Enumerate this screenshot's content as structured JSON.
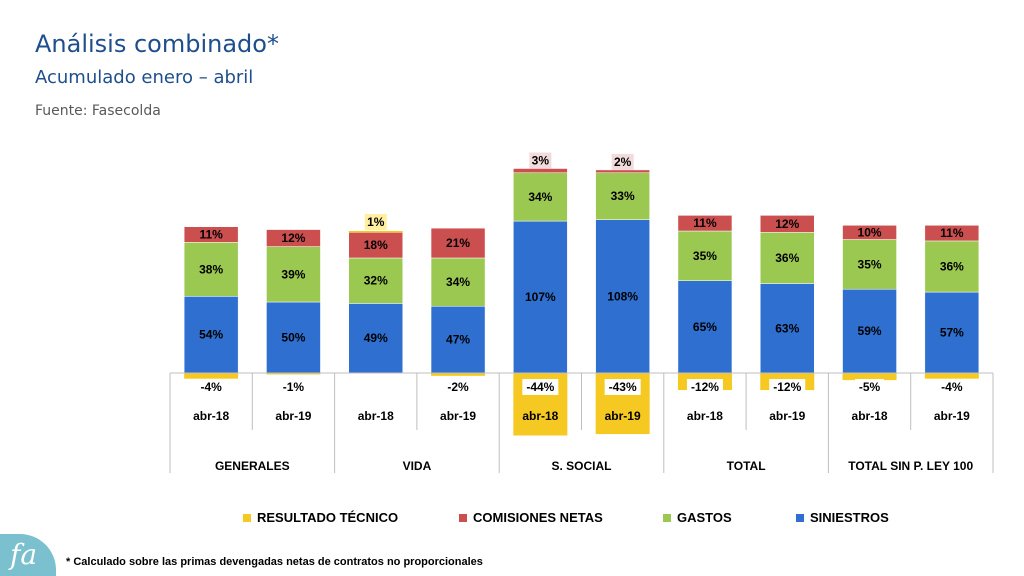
{
  "header": {
    "title": "Análisis combinado*",
    "subtitle": "Acumulado enero – abril",
    "source": "Fuente: Fasecolda"
  },
  "footnote": "* Calculado sobre las primas devengadas netas de contratos no proporcionales",
  "logo": {
    "icon": "fasecolda-logo-icon",
    "text": "fa"
  },
  "colors": {
    "siniestros": "#2e6fcf",
    "gastos": "#9bc851",
    "comisiones": "#cc4f4f",
    "resultado": "#f5c922"
  },
  "chart_data": {
    "type": "bar",
    "stacked": true,
    "categories": [
      "abr-18",
      "abr-19",
      "abr-18",
      "abr-19",
      "abr-18",
      "abr-19",
      "abr-18",
      "abr-19",
      "abr-18",
      "abr-19"
    ],
    "groups": [
      "GENERALES",
      "VIDA",
      "S. SOCIAL",
      "TOTAL",
      "TOTAL SIN P. LEY 100"
    ],
    "series": [
      {
        "name": "SINIESTROS",
        "key": "siniestros",
        "values": [
          54,
          50,
          49,
          47,
          107,
          108,
          65,
          63,
          59,
          57
        ],
        "labels": [
          "54%",
          "50%",
          "49%",
          "47%",
          "107%",
          "108%",
          "65%",
          "63%",
          "59%",
          "57%"
        ]
      },
      {
        "name": "GASTOS",
        "key": "gastos",
        "values": [
          38,
          39,
          32,
          34,
          34,
          33,
          35,
          36,
          35,
          36
        ],
        "labels": [
          "38%",
          "39%",
          "32%",
          "34%",
          "34%",
          "33%",
          "35%",
          "36%",
          "35%",
          "36%"
        ]
      },
      {
        "name": "COMISIONES NETAS",
        "key": "comisiones",
        "values": [
          11,
          12,
          18,
          21,
          3,
          2,
          11,
          12,
          10,
          11
        ],
        "labels": [
          "11%",
          "12%",
          "18%",
          "21%",
          "3%",
          "2%",
          "11%",
          "12%",
          "10%",
          "11%"
        ]
      },
      {
        "name": "RESULTADO TÉCNICO",
        "key": "resultado",
        "values": [
          -4,
          -1,
          1,
          -2,
          -44,
          -43,
          -12,
          -12,
          -5,
          -4
        ],
        "labels": [
          "-4%",
          "-1%",
          "1%",
          "-2%",
          "-44%",
          "-43%",
          "-12%",
          "-12%",
          "-5%",
          "-4%"
        ]
      }
    ],
    "legend_order": [
      "RESULTADO TÉCNICO",
      "COMISIONES NETAS",
      "GASTOS",
      "SINIESTROS"
    ],
    "legend_position": "bottom"
  }
}
